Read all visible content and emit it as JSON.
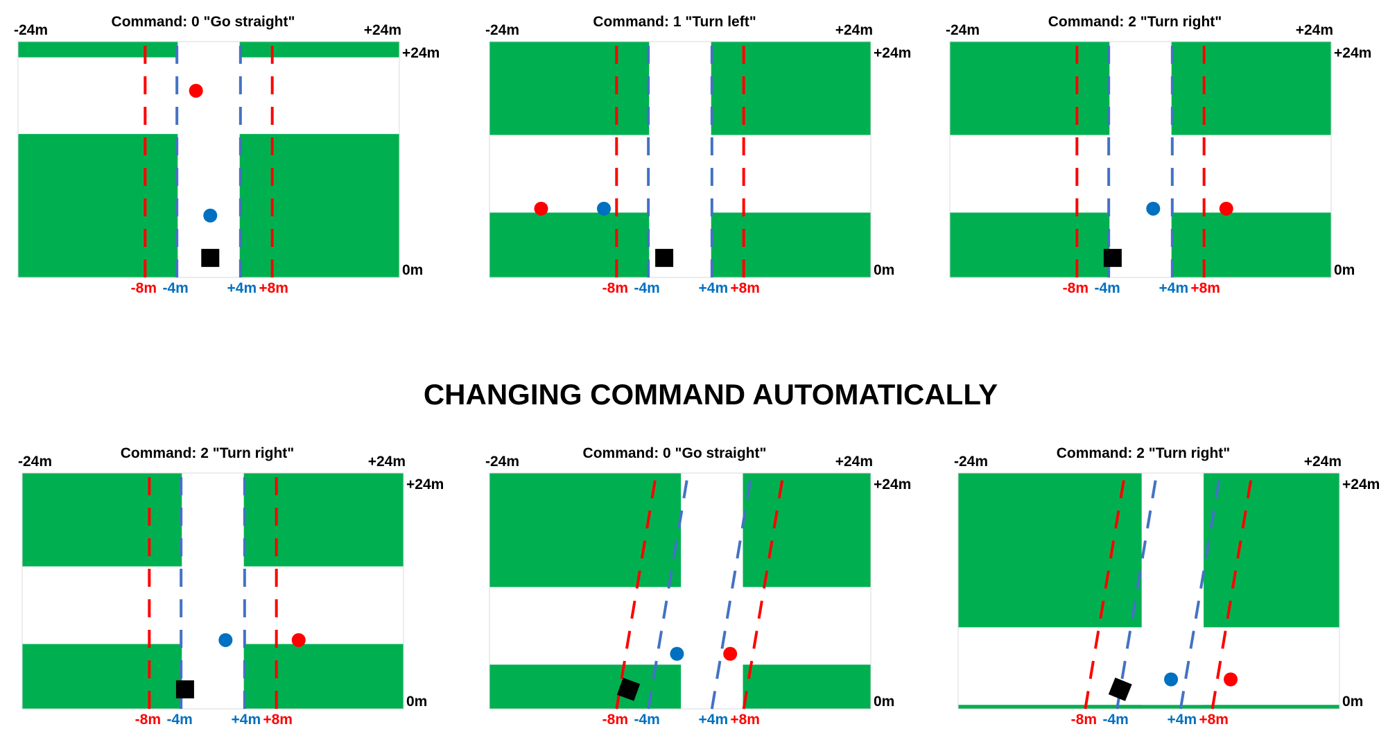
{
  "heading": "CHANGING COMMAND AUTOMATICALLY",
  "colors": {
    "grass": "#00B050",
    "road": "#FFFFFF",
    "inner_lane": "#4472C4",
    "outer_lane": "#FF0000",
    "waypoint_red": "#FF0000",
    "waypoint_blue": "#0070C0",
    "vehicle": "#000000",
    "blue_text": "#0070C0",
    "red_text": "#FF0000",
    "black_text": "#000000"
  },
  "axis_labels": {
    "x_left": "-24m",
    "x_right": "+24m",
    "y_top": "+24m",
    "y_bottom": "0m",
    "lane_ticks": [
      {
        "text": "-8m",
        "value": -8,
        "color": "red"
      },
      {
        "text": "-4m",
        "value": -4,
        "color": "blue"
      },
      {
        "text": "+4m",
        "value": 4,
        "color": "blue"
      },
      {
        "text": "+8m",
        "value": 8,
        "color": "red"
      }
    ]
  },
  "panels": [
    {
      "title": "Command: 0 \"Go straight\"",
      "scene": "cross-far",
      "lane_slant_m": 0,
      "red_point_m": [
        -1.6,
        19
      ],
      "blue_point_m": [
        0.2,
        6.3
      ],
      "vehicle_m": [
        0.2,
        1
      ],
      "vehicle_angle_deg": 0
    },
    {
      "title": "Command: 1 \"Turn left\"",
      "scene": "cross-near",
      "lane_slant_m": 0,
      "red_point_m": [
        -17.5,
        7
      ],
      "blue_point_m": [
        -9.6,
        7
      ],
      "vehicle_m": [
        -2,
        1
      ],
      "vehicle_angle_deg": 0
    },
    {
      "title": "Command: 2 \"Turn right\"",
      "scene": "cross-near",
      "lane_slant_m": 0,
      "red_point_m": [
        10.8,
        7
      ],
      "blue_point_m": [
        1.6,
        7
      ],
      "vehicle_m": [
        -3.5,
        1
      ],
      "vehicle_angle_deg": 0
    },
    {
      "title": "Command: 2 \"Turn right\"",
      "scene": "cross-near",
      "lane_slant_m": 0,
      "red_point_m": [
        10.8,
        7
      ],
      "blue_point_m": [
        1.6,
        7
      ],
      "vehicle_m": [
        -3.5,
        1
      ],
      "vehicle_angle_deg": 0
    },
    {
      "title": "Command: 0 \"Go straight\"",
      "scene": "cross-near-shifted",
      "lane_slant_m": 5,
      "red_point_m": [
        6.3,
        5.6
      ],
      "blue_point_m": [
        -0.4,
        5.6
      ],
      "vehicle_m": [
        -6.5,
        1
      ],
      "vehicle_angle_deg": 20
    },
    {
      "title": "Command: 2 \"Turn right\"",
      "scene": "cross-edge",
      "lane_slant_m": 5,
      "red_point_m": [
        10.3,
        3
      ],
      "blue_point_m": [
        2.8,
        3
      ],
      "vehicle_m": [
        -3.6,
        1
      ],
      "vehicle_angle_deg": 22
    }
  ]
}
